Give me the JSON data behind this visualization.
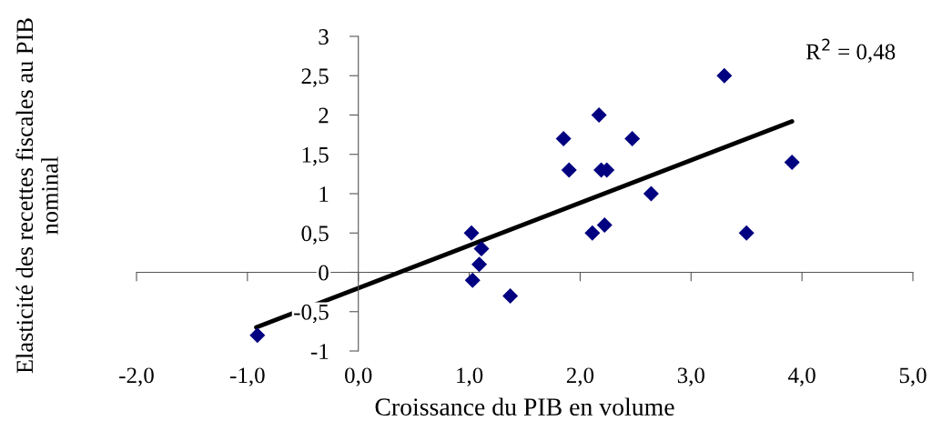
{
  "chart_data": {
    "type": "scatter",
    "xlabel": "Croissance du PIB en volume",
    "ylabel": "Elasticité des recettes fiscales au PIB\nnominal",
    "marker": "diamond",
    "xlim": [
      -2,
      5
    ],
    "xticks": [
      {
        "value": -2,
        "label": "-2,0"
      },
      {
        "value": -1,
        "label": "-1,0"
      },
      {
        "value": 0,
        "label": "0,0"
      },
      {
        "value": 1,
        "label": "1,0"
      },
      {
        "value": 2,
        "label": "2,0"
      },
      {
        "value": 3,
        "label": "3,0"
      },
      {
        "value": 4,
        "label": "4,0"
      },
      {
        "value": 5,
        "label": "5,0"
      }
    ],
    "ylim": [
      -1,
      3
    ],
    "yticks": [
      {
        "value": -1,
        "label": "-1"
      },
      {
        "value": -0.5,
        "label": "-0,5"
      },
      0,
      {
        "value": 0.5,
        "label": "0,5"
      },
      1,
      {
        "value": 1.5,
        "label": "1,5"
      },
      2,
      {
        "value": 2.5,
        "label": "2,5"
      },
      3
    ],
    "series": [
      {
        "color": "#000080",
        "x": [
          -0.91,
          1.02,
          1.03,
          1.11,
          1.09,
          1.37,
          1.85,
          1.9,
          2.17,
          2.19,
          2.24,
          2.47,
          2.64,
          2.22,
          2.11,
          3.3,
          3.5,
          3.91
        ],
        "values": [
          -0.8,
          0.5,
          -0.1,
          0.3,
          0.1,
          -0.3,
          1.7,
          1.3,
          2.0,
          1.3,
          1.3,
          1.7,
          1.0,
          0.6,
          0.5,
          2.5,
          0.5,
          1.4
        ]
      },
      {
        "type": "line",
        "color": "#000000",
        "marker": "none",
        "x": [
          -0.92,
          3.91
        ],
        "values": [
          -0.7,
          1.92
        ]
      }
    ],
    "annotations": [
      "R$^{2}$ = 0,48"
    ]
  }
}
